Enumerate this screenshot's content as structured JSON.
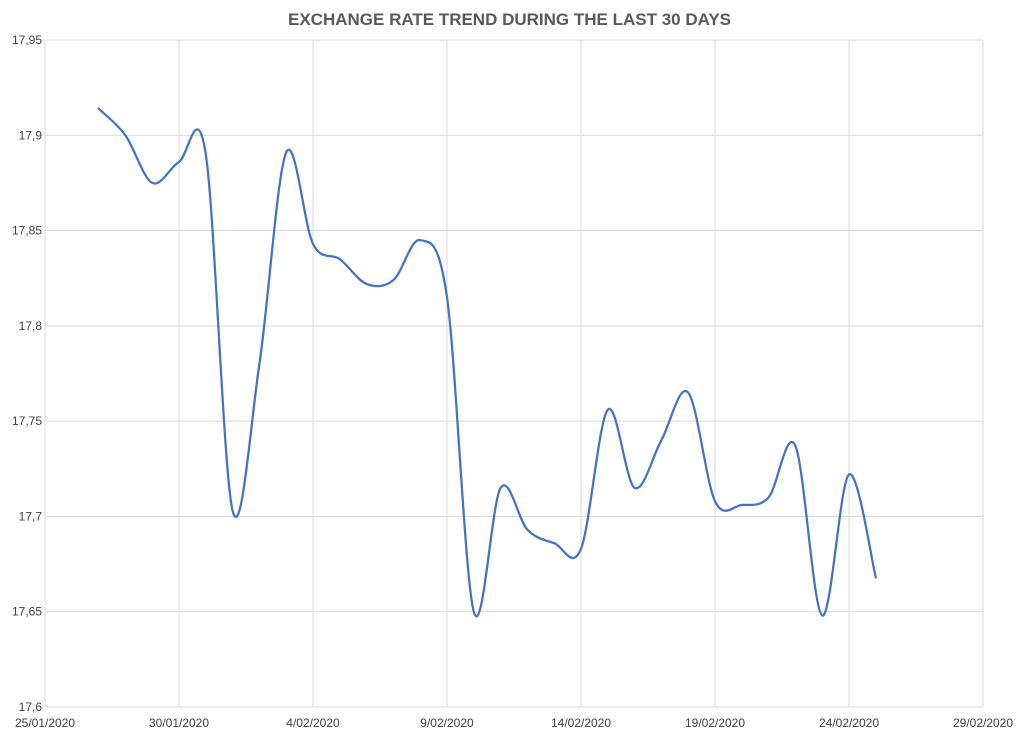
{
  "chart_data": {
    "type": "line",
    "title": "EXCHANGE RATE TREND  DURING THE LAST 30 DAYS",
    "xlabel": "",
    "ylabel": "",
    "xlim": [
      "25/01/2020",
      "29/02/2020"
    ],
    "ylim": [
      17.6,
      17.95
    ],
    "x_ticks": [
      "25/01/2020",
      "30/01/2020",
      "4/02/2020",
      "9/02/2020",
      "14/02/2020",
      "19/02/2020",
      "24/02/2020",
      "29/02/2020"
    ],
    "y_ticks": [
      "17,6",
      "17,65",
      "17,7",
      "17,75",
      "17,8",
      "17,85",
      "17,9",
      "17,95"
    ],
    "grid": true,
    "line_color": "#4472c4",
    "series": [
      {
        "x": [
          "27/01/2020",
          "28/01/2020",
          "29/01/2020",
          "30/01/2020",
          "31/01/2020",
          "01/02/2020",
          "02/02/2020",
          "03/02/2020",
          "04/02/2020",
          "05/02/2020",
          "06/02/2020",
          "07/02/2020",
          "08/02/2020",
          "09/02/2020",
          "10/02/2020",
          "11/02/2020",
          "12/02/2020",
          "13/02/2020",
          "14/02/2020",
          "15/02/2020",
          "16/02/2020",
          "17/02/2020",
          "18/02/2020",
          "19/02/2020",
          "20/02/2020",
          "21/02/2020",
          "22/02/2020",
          "23/02/2020",
          "24/02/2020",
          "25/02/2020"
        ],
        "values": [
          17.914,
          17.9,
          17.875,
          17.886,
          17.89,
          17.703,
          17.78,
          17.891,
          17.843,
          17.835,
          17.822,
          17.824,
          17.845,
          17.815,
          17.65,
          17.715,
          17.693,
          17.686,
          17.683,
          17.756,
          17.715,
          17.74,
          17.765,
          17.708,
          17.706,
          17.71,
          17.737,
          17.648,
          17.722,
          17.668
        ]
      }
    ]
  }
}
